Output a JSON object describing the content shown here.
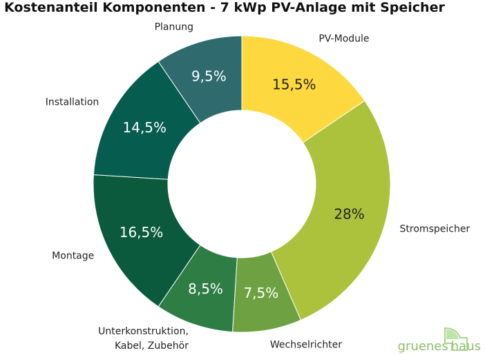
{
  "chart_data": {
    "type": "donut",
    "title": "Kostenanteil Komponenten - 7 kWp PV-Anlage mit Speicher",
    "categories": [
      "PV-Module",
      "Stromspeicher",
      "Wechselrichter",
      "Unterkonstruktion,\nKabel, Zubehör",
      "Montage",
      "Installation",
      "Planung"
    ],
    "values": [
      15.5,
      28,
      7.5,
      8.5,
      16.5,
      14.5,
      9.5
    ],
    "value_labels": [
      "15,5%",
      "28%",
      "7,5%",
      "8,5%",
      "16,5%",
      "14,5%",
      "9,5%"
    ],
    "colors": [
      "#fdd93f",
      "#adc23c",
      "#6ea141",
      "#2e7d45",
      "#0b5a3e",
      "#075c50",
      "#2f6b6e"
    ]
  },
  "logo": [
    "gruenes",
    "haus"
  ]
}
